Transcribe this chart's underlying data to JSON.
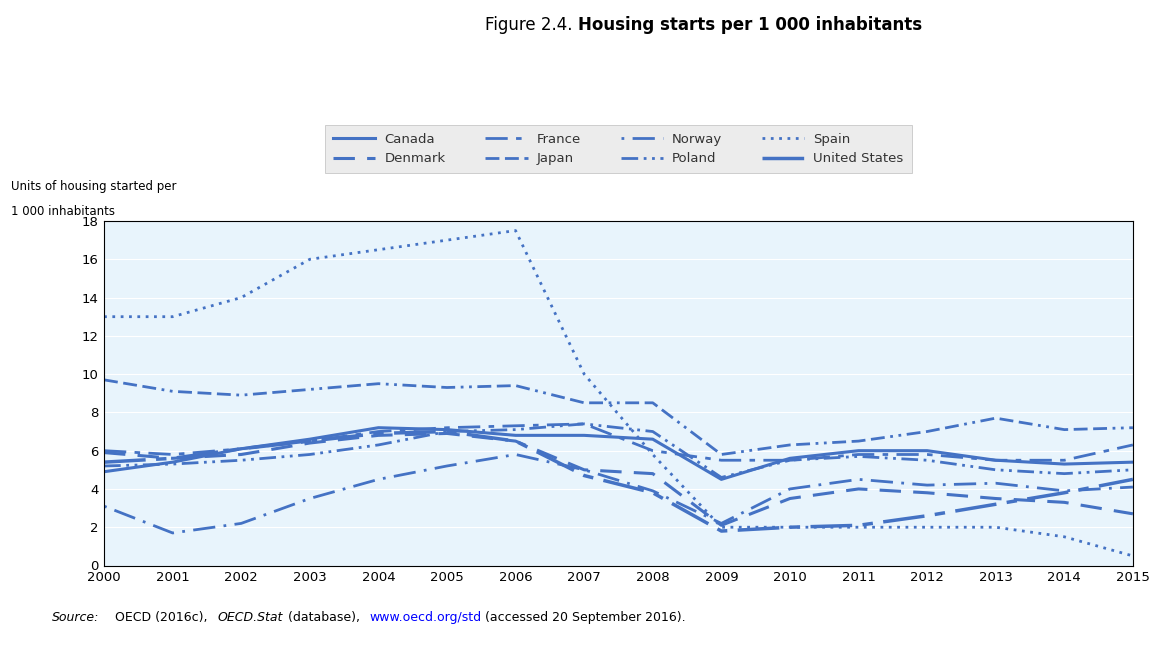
{
  "title_normal": "Figure 2.4. ",
  "title_bold": "Housing starts per 1 000 inhabitants",
  "ylabel_line1": "Units of housing started per",
  "ylabel_line2": "1 000 inhabitants",
  "years": [
    2000,
    2001,
    2002,
    2003,
    2004,
    2005,
    2006,
    2007,
    2008,
    2009,
    2010,
    2011,
    2012,
    2013,
    2014,
    2015
  ],
  "series": {
    "Canada": {
      "data": [
        4.9,
        5.4,
        6.1,
        6.6,
        7.2,
        7.1,
        6.8,
        6.8,
        6.6,
        4.5,
        5.6,
        6.0,
        6.0,
        5.5,
        5.3,
        5.4
      ]
    },
    "Denmark": {
      "data": [
        5.9,
        5.6,
        5.8,
        6.4,
        6.8,
        6.9,
        6.5,
        5.0,
        4.8,
        2.1,
        3.5,
        4.0,
        3.8,
        3.5,
        3.3,
        2.7
      ]
    },
    "France": {
      "data": [
        6.0,
        5.8,
        6.1,
        6.5,
        7.0,
        7.2,
        7.3,
        7.4,
        6.0,
        5.5,
        5.5,
        5.8,
        5.8,
        5.5,
        5.5,
        6.3
      ]
    },
    "Japan": {
      "data": [
        9.7,
        9.1,
        8.9,
        9.2,
        9.5,
        9.3,
        9.4,
        8.5,
        8.5,
        5.8,
        6.3,
        6.5,
        7.0,
        7.7,
        7.1,
        7.2
      ]
    },
    "Norway": {
      "data": [
        3.1,
        1.7,
        2.2,
        3.5,
        4.5,
        5.2,
        5.8,
        5.0,
        3.9,
        2.2,
        4.0,
        4.5,
        4.2,
        4.3,
        3.9,
        4.1
      ]
    },
    "Poland": {
      "data": [
        5.2,
        5.3,
        5.5,
        5.8,
        6.3,
        7.0,
        7.1,
        7.4,
        7.0,
        4.6,
        5.5,
        5.7,
        5.5,
        5.0,
        4.8,
        5.0
      ]
    },
    "Spain": {
      "data": [
        13.0,
        13.0,
        14.0,
        16.0,
        16.5,
        17.0,
        17.5,
        10.0,
        5.8,
        2.0,
        2.0,
        2.0,
        2.0,
        2.0,
        1.5,
        0.5
      ]
    },
    "United States": {
      "data": [
        5.4,
        5.6,
        6.1,
        6.5,
        6.9,
        7.0,
        6.5,
        4.7,
        3.8,
        1.8,
        2.0,
        2.1,
        2.6,
        3.2,
        3.8,
        4.5
      ]
    }
  },
  "ylim": [
    0,
    18
  ],
  "yticks": [
    0,
    2,
    4,
    6,
    8,
    10,
    12,
    14,
    16,
    18
  ],
  "bg_color": "#E8F4FC",
  "line_color": "#4472C4",
  "legend_bg": "#E8E8E8",
  "legend_order_row1": [
    "Canada",
    "Denmark",
    "France",
    "Japan"
  ],
  "legend_order_row2": [
    "Norway",
    "Poland",
    "Spain",
    "United States"
  ]
}
